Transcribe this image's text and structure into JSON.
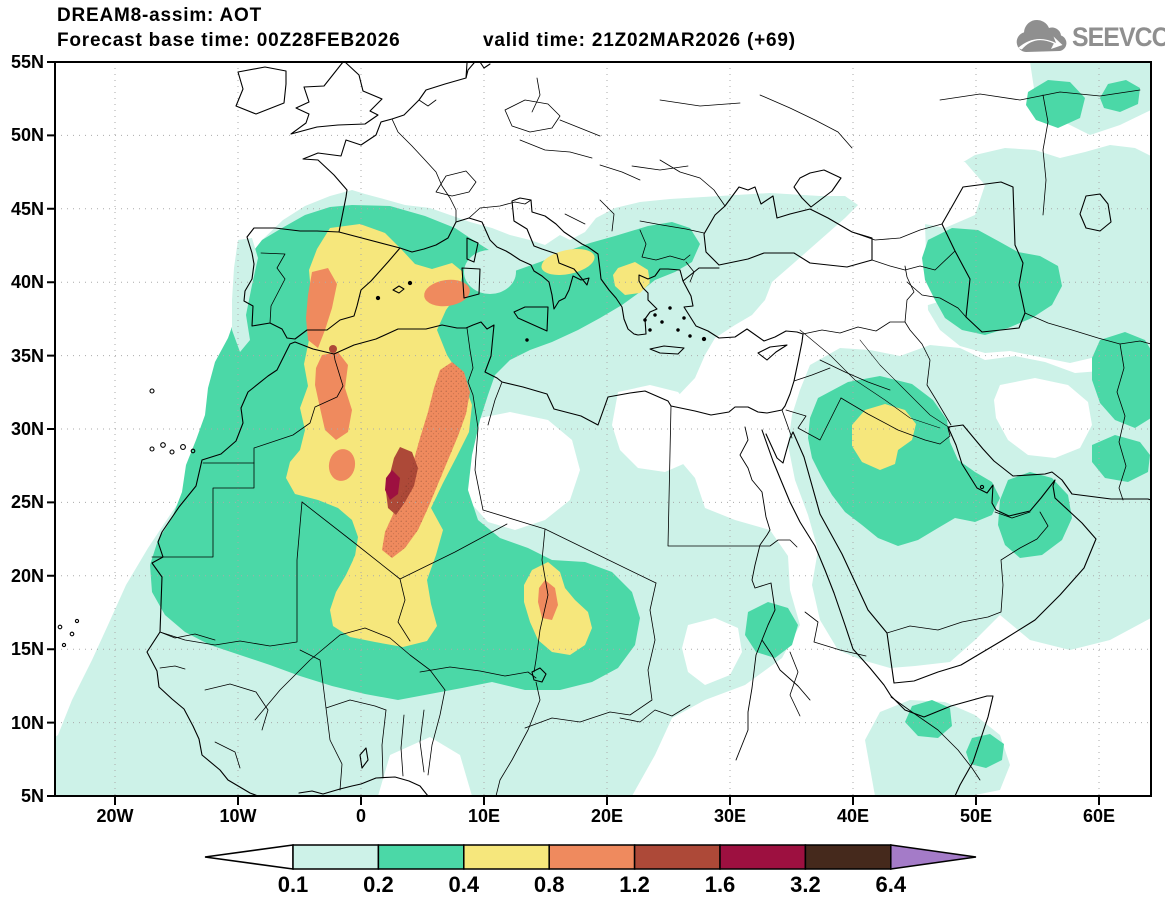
{
  "header": {
    "line1": "DREAM8-assim: AOT",
    "line2_left": "Forecast base time: 00Z28FEB2026",
    "line2_right": "valid time: 21Z02MAR2026 (+69)"
  },
  "logo": {
    "text": "SEEVCCC",
    "icon": "cloud-arrow",
    "color": "#8f8f8f"
  },
  "axes": {
    "lat_ticks": [
      "55N",
      "50N",
      "45N",
      "40N",
      "35N",
      "30N",
      "25N",
      "20N",
      "15N",
      "10N",
      "5N"
    ],
    "lon_ticks": [
      "20W",
      "10W",
      "0",
      "10E",
      "20E",
      "30E",
      "40E",
      "50E",
      "60E"
    ]
  },
  "legend": {
    "tick_labels": [
      "0.1",
      "0.2",
      "0.4",
      "0.8",
      "1.2",
      "1.6",
      "3.2",
      "6.4"
    ],
    "levels": [
      0.1,
      0.2,
      0.4,
      0.8,
      1.2,
      1.6,
      3.2,
      6.4
    ],
    "colors": [
      "#ffffff",
      "#cdf2e8",
      "#4bd8a7",
      "#f6e77c",
      "#ef8a5e",
      "#ad4938",
      "#9d1040",
      "#45291c",
      "#a47bc8"
    ],
    "frame_color": "#000000"
  },
  "map": {
    "variable": "AOT",
    "model": "DREAM8-assim",
    "max_shaded_level_visible": "1.6-3.2 core over central Algeria (~4E, 27N)",
    "main_plume": "Sahara/Iberia/W-Mediterranean dust plume with secondary maxima over Iraq-N.Saudi and Chad"
  }
}
